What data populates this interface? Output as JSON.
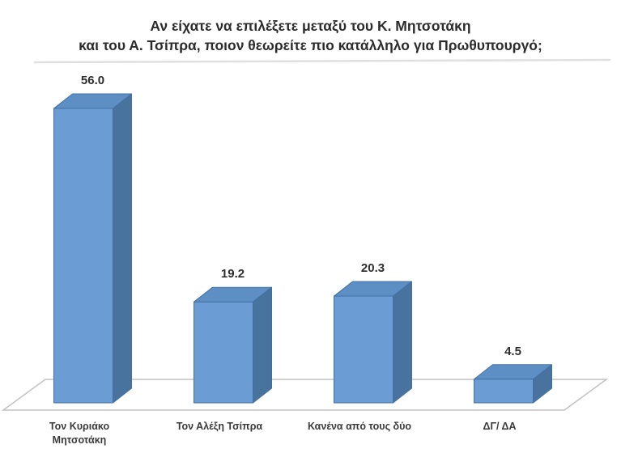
{
  "chart_data": {
    "type": "bar",
    "variant": "3d-column",
    "title": "Αν είχατε να επιλέξετε μεταξύ του Κ. Μητσοτάκη και του Α. Τσίπρα, ποιον θεωρείτε πιο κατάλληλο για Πρωθυπουργό;",
    "title_lines": [
      "Αν είχατε να επιλέξετε μεταξύ του Κ. Μητσοτάκη",
      "και του Α. Τσίπρα, ποιον θεωρείτε πιο κατάλληλο για Πρωθυπουργό;"
    ],
    "categories": [
      "Τον Κυριάκο Μητσοτάκη",
      "Τον Αλέξη Τσίπρα",
      "Κανένα από τους δύο",
      "ΔΓ/ ΔΑ"
    ],
    "label_lines": [
      [
        "Τον Κυριάκο",
        "Μητσοτάκη"
      ],
      [
        "Τον Αλέξη Τσίπρα"
      ],
      [
        "Κανένα από τους δύο"
      ],
      [
        "ΔΓ/ ΔΑ"
      ]
    ],
    "values": [
      56.0,
      19.2,
      20.3,
      4.5
    ],
    "value_labels": [
      "56.0",
      "19.2",
      "20.3",
      "4.5"
    ],
    "xlabel": "",
    "ylabel": "",
    "ylim": [
      0,
      60
    ],
    "legend": false,
    "gridlines": false,
    "colors": {
      "bar_front": "#6b9cd4",
      "bar_top": "#5e8fc4",
      "bar_side": "#49739f",
      "bar_outline": "#4270a4",
      "floor_line": "#c2c2c2",
      "faint_gridline": "#e0e0e0",
      "text": "#2b2b2b"
    }
  }
}
